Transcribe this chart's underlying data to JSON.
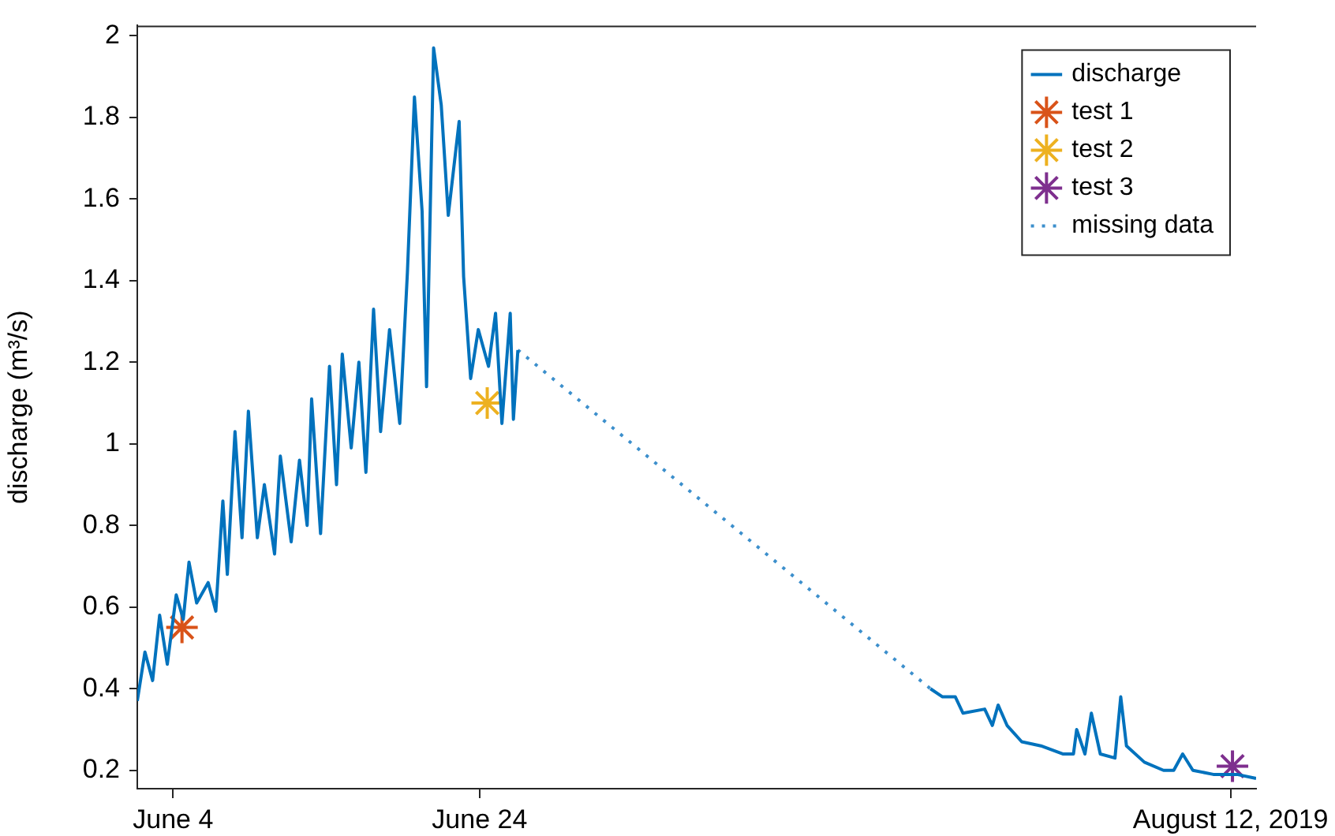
{
  "chart_data": {
    "type": "line",
    "ylabel": "discharge (m³/s)",
    "xlim": [
      "2019-06-01T16:00",
      "2019-08-13T16:00"
    ],
    "xticks": [
      {
        "value": "2019-06-04",
        "label": "June 4"
      },
      {
        "value": "2019-06-24",
        "label": "June 24"
      },
      {
        "value": "2019-08-12",
        "label": "August 12, 2019"
      }
    ],
    "ylim": [
      0.155,
      2.025
    ],
    "yticks": [
      0.2,
      0.4,
      0.6,
      0.8,
      1,
      1.2,
      1.4,
      1.6,
      1.8,
      2
    ],
    "grid": false,
    "legend": "top right",
    "series": [
      {
        "name": "discharge",
        "type": "line",
        "color": "#0072bd",
        "marker": "none",
        "line_style": "solid",
        "x": [
          "2019-06-01T16:00",
          "2019-06-02T04:00",
          "2019-06-02T16:00",
          "2019-06-03T03:00",
          "2019-06-03T15:00",
          "2019-06-04T05:00",
          "2019-06-04T16:00",
          "2019-06-05T01:00",
          "2019-06-05T13:00",
          "2019-06-06T07:00",
          "2019-06-06T19:00",
          "2019-06-07T06:00",
          "2019-06-07T13:00",
          "2019-06-08T01:00",
          "2019-06-08T12:00",
          "2019-06-08T22:00",
          "2019-06-09T12:00",
          "2019-06-09T23:00",
          "2019-06-10T15:00",
          "2019-06-11T00:00",
          "2019-06-11T17:00",
          "2019-06-12T06:00",
          "2019-06-12T18:00",
          "2019-06-13T01:00",
          "2019-06-13T15:00",
          "2019-06-14T05:00",
          "2019-06-14T16:00",
          "2019-06-15T01:00",
          "2019-06-15T15:00",
          "2019-06-16T03:00",
          "2019-06-16T14:00",
          "2019-06-17T02:00",
          "2019-06-17T13:00",
          "2019-06-18T03:00",
          "2019-06-18T19:00",
          "2019-06-19T07:00",
          "2019-06-19T18:00",
          "2019-06-20T06:00",
          "2019-06-20T13:00",
          "2019-06-21T00:00",
          "2019-06-21T12:00",
          "2019-06-21T23:00",
          "2019-06-22T16:00",
          "2019-06-22T23:00",
          "2019-06-23T10:00",
          "2019-06-23T22:00",
          "2019-06-24T14:00",
          "2019-06-25T01:00",
          "2019-06-25T11:00",
          "2019-06-26T00:00",
          "2019-06-26T05:00",
          "2019-06-26T12:00",
          "2019-07-10T00:00",
          "2019-07-23T10:00",
          "2019-07-24T05:00",
          "2019-07-25T01:00",
          "2019-07-25T13:00",
          "2019-07-26T23:00",
          "2019-07-27T11:00",
          "2019-07-27T20:00",
          "2019-07-28T10:00",
          "2019-07-29T09:00",
          "2019-07-30T15:00",
          "2019-08-01T02:00",
          "2019-08-01T18:00",
          "2019-08-01T23:00",
          "2019-08-02T12:00",
          "2019-08-02T22:00",
          "2019-08-03T12:00",
          "2019-08-04T11:00",
          "2019-08-04T20:00",
          "2019-08-05T05:00",
          "2019-08-06T09:00",
          "2019-08-07T15:00",
          "2019-08-08T07:00",
          "2019-08-08T21:00",
          "2019-08-09T13:00",
          "2019-08-10T21:00",
          "2019-08-11T20:00",
          "2019-08-12T10:00",
          "2019-08-13T16:00"
        ],
        "values": [
          0.37,
          0.49,
          0.42,
          0.58,
          0.46,
          0.63,
          0.57,
          0.71,
          0.61,
          0.66,
          0.59,
          0.86,
          0.68,
          1.03,
          0.77,
          1.08,
          0.77,
          0.9,
          0.73,
          0.97,
          0.76,
          0.96,
          0.8,
          1.11,
          0.78,
          1.19,
          0.9,
          1.22,
          0.99,
          1.2,
          0.93,
          1.33,
          1.03,
          1.28,
          1.05,
          1.42,
          1.85,
          1.57,
          1.14,
          1.97,
          1.83,
          1.56,
          1.79,
          1.41,
          1.16,
          1.28,
          1.19,
          1.32,
          1.05,
          1.32,
          1.06,
          1.23,
          null,
          0.4,
          0.38,
          0.38,
          0.34,
          0.35,
          0.31,
          0.36,
          0.31,
          0.27,
          0.26,
          0.24,
          0.24,
          0.3,
          0.24,
          0.34,
          0.24,
          0.23,
          0.38,
          0.26,
          0.22,
          0.2,
          0.2,
          0.24,
          0.2,
          0.19,
          0.19,
          0.19,
          0.18
        ]
      },
      {
        "name": "test 1",
        "type": "scatter",
        "color": "#d95319",
        "marker": "cross",
        "x": [
          "2019-06-04T14:00"
        ],
        "values": [
          0.55
        ]
      },
      {
        "name": "test 2",
        "type": "scatter",
        "color": "#edb120",
        "marker": "cross",
        "x": [
          "2019-06-24T12:00"
        ],
        "values": [
          1.1
        ]
      },
      {
        "name": "test 3",
        "type": "scatter",
        "color": "#7e2f8e",
        "marker": "cross",
        "x": [
          "2019-08-12T03:00"
        ],
        "values": [
          0.21
        ]
      },
      {
        "name": "missing data",
        "type": "line",
        "color": "#3c8fcc",
        "marker": "none",
        "line_style": "dotted",
        "x": [
          "2019-06-26T12:00",
          "2019-07-23T10:00"
        ],
        "values": [
          1.23,
          0.4
        ]
      }
    ]
  }
}
